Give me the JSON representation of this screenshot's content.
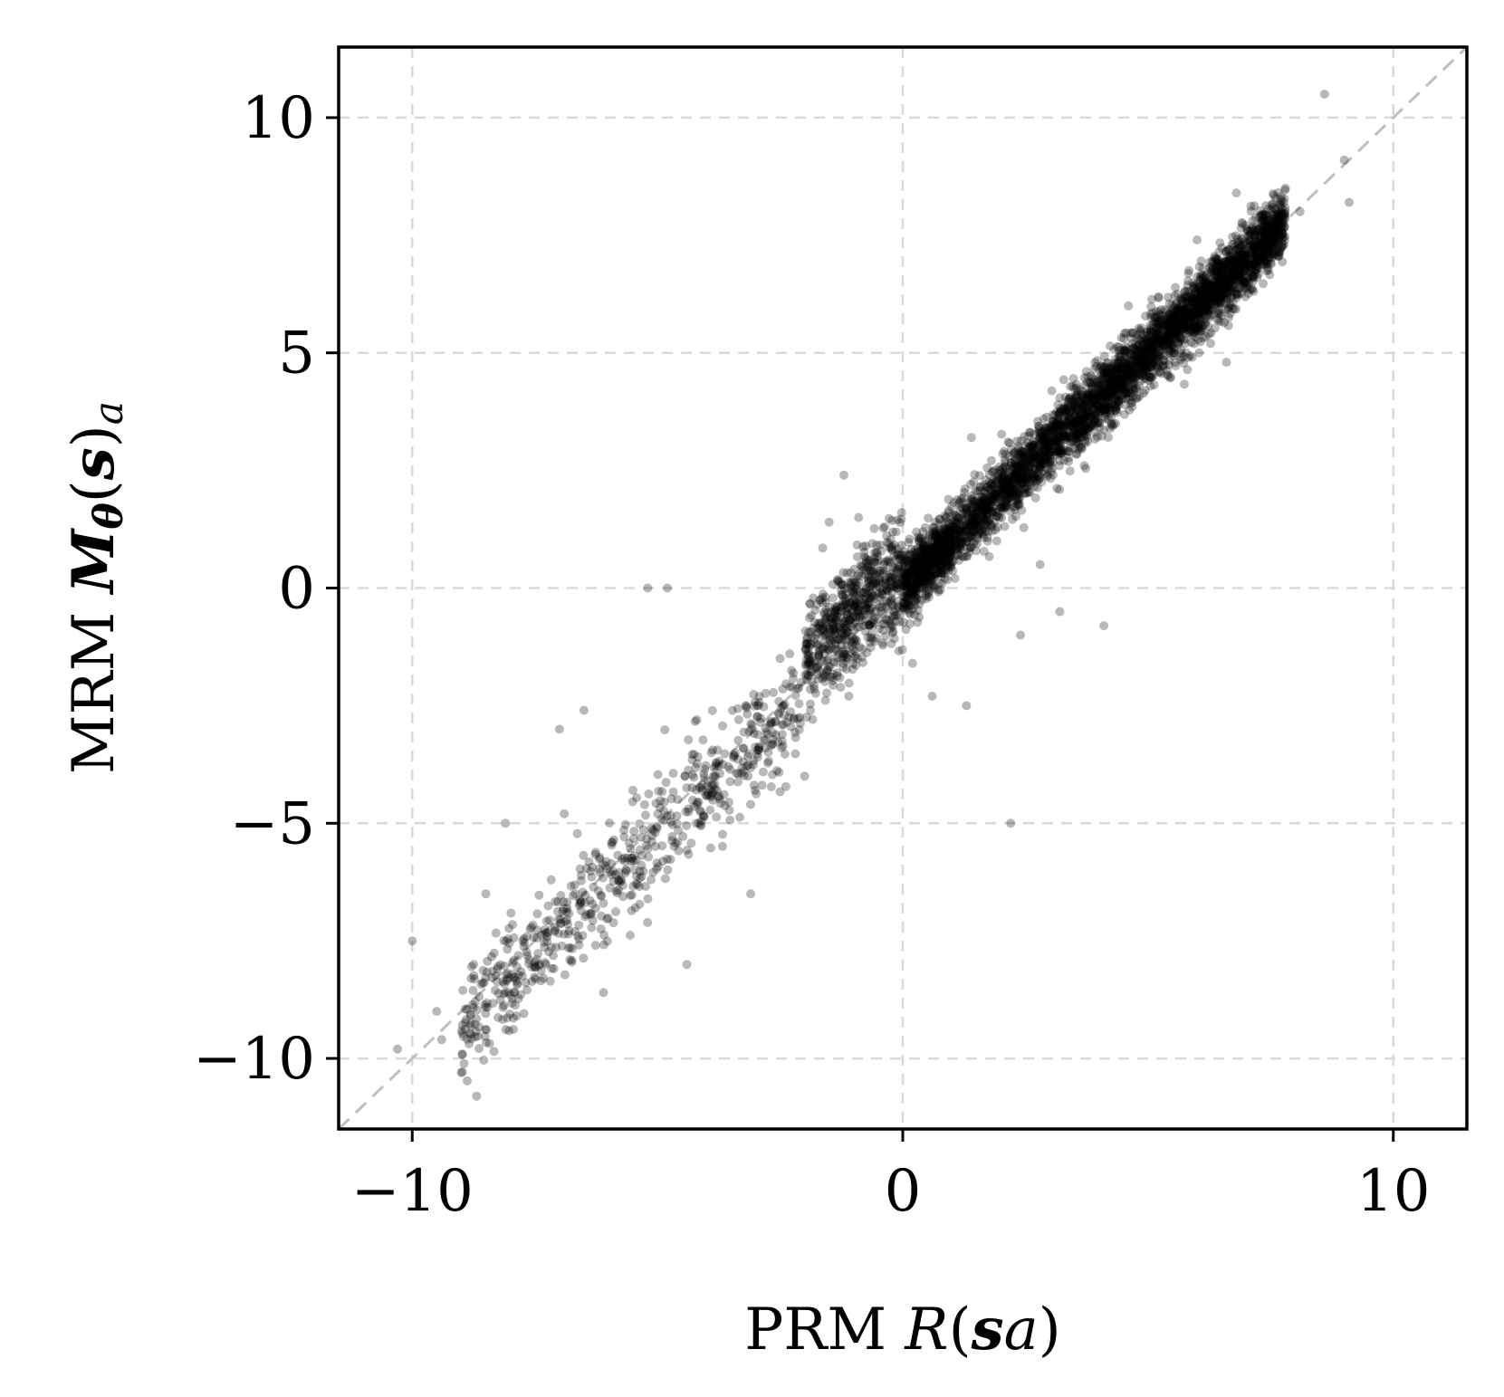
{
  "chart_data": {
    "type": "scatter",
    "xlabel": {
      "prefix": "PRM ",
      "func": "R",
      "open": "(",
      "var": "s",
      "sub": "a",
      "close": ")"
    },
    "ylabel": {
      "prefix": "MRM ",
      "func": "M",
      "theta": "θ",
      "open": "(",
      "var": "s",
      "close": ")",
      "sub": "a"
    },
    "xlim": [
      -11.5,
      11.5
    ],
    "ylim": [
      -11.5,
      11.5
    ],
    "xticks": [
      -10,
      0,
      10
    ],
    "xtick_labels": [
      "−10",
      "0",
      "10"
    ],
    "yticks": [
      -10,
      -5,
      0,
      5,
      10
    ],
    "ytick_labels": [
      "−10",
      "−5",
      "0",
      "5",
      "10"
    ],
    "grid": true,
    "reference_line": "y = x",
    "point_color": "#000000",
    "point_alpha": 0.28,
    "reference_color": "#bfbfbf",
    "grid_color": "#d9d9d9",
    "points": [
      [
        8.6,
        10.5
      ],
      [
        -1.5,
        1.4
      ],
      [
        2.8,
        0.5
      ],
      [
        -4.8,
        0.0
      ],
      [
        2.2,
        -5.0
      ],
      [
        -2.3,
        -2.1
      ],
      [
        -4.4,
        -8.0
      ],
      [
        -9.0,
        -10.3
      ],
      [
        -6.1,
        -8.6
      ],
      [
        -10.0,
        -7.5
      ],
      [
        -1.1,
        -2.3
      ],
      [
        -1.2,
        2.4
      ],
      [
        7.5,
        7.7
      ],
      [
        6.0,
        7.4
      ],
      [
        6.8,
        8.4
      ],
      [
        9.1,
        8.2
      ],
      [
        -8.1,
        -5.0
      ],
      [
        -7.0,
        -3.0
      ],
      [
        3.7,
        2.6
      ],
      [
        1.3,
        -2.5
      ],
      [
        4.1,
        -0.8
      ],
      [
        -3.1,
        -6.5
      ],
      [
        -5.5,
        -4.3
      ],
      [
        0.6,
        -2.3
      ],
      [
        -3.9,
        -3.5
      ],
      [
        -10.3,
        -9.8
      ],
      [
        -9.5,
        -9.0
      ],
      [
        -8.8,
        -8.3
      ],
      [
        -7.4,
        -8.0
      ],
      [
        5.8,
        5.5
      ],
      [
        -5.2,
        0.0
      ],
      [
        2.4,
        -1.0
      ],
      [
        -0.9,
        1.5
      ],
      [
        1.4,
        3.2
      ],
      [
        4.6,
        6.0
      ],
      [
        8.1,
        8.0
      ],
      [
        -6.5,
        -2.6
      ],
      [
        -9.4,
        -9.6
      ],
      [
        -7.1,
        -7.3
      ],
      [
        -2.0,
        -4.0
      ],
      [
        3.2,
        -0.5
      ],
      [
        -2.5,
        -1.5
      ],
      [
        -4.2,
        -2.8
      ],
      [
        -0.4,
        -0.9
      ],
      [
        0.2,
        -1.6
      ],
      [
        -6.9,
        -4.8
      ],
      [
        -8.5,
        -6.5
      ],
      [
        6.6,
        4.8
      ],
      [
        7.8,
        8.5
      ],
      [
        9.0,
        9.1
      ]
    ]
  }
}
